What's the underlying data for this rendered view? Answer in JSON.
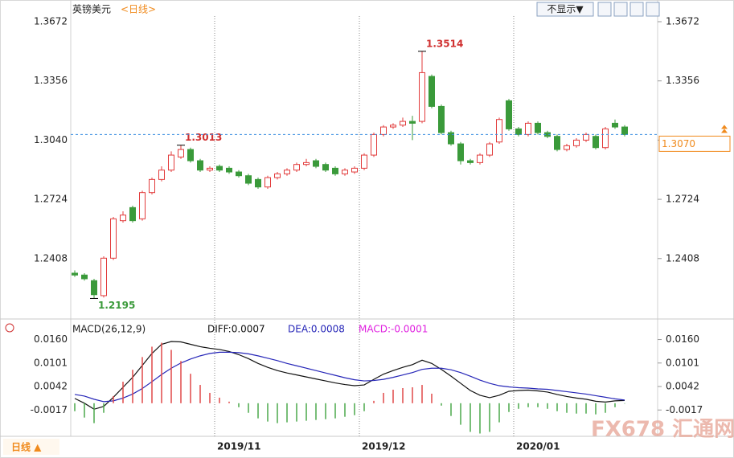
{
  "header": {
    "symbol": "英镑美元",
    "period": "<日线>",
    "display_button": "不显示▼"
  },
  "footer": {
    "period_button": "日线 ▲"
  },
  "watermark": "FX678 汇通网",
  "chart_data": [
    {
      "type": "candlestick",
      "categories": [
        null,
        null,
        null,
        null,
        null,
        null,
        null,
        null,
        null,
        null,
        null,
        null,
        null,
        null,
        null,
        "2019/11",
        null,
        null,
        null,
        null,
        null,
        null,
        null,
        null,
        null,
        null,
        null,
        null,
        null,
        null,
        "2019/12",
        null,
        null,
        null,
        null,
        null,
        null,
        null,
        null,
        null,
        null,
        null,
        null,
        null,
        null,
        null,
        "2020/01",
        null,
        null,
        null,
        null,
        null,
        null,
        null,
        null,
        null,
        null,
        null
      ],
      "open": [
        1.233,
        1.232,
        1.229,
        1.221,
        1.241,
        1.261,
        1.268,
        1.262,
        1.276,
        1.283,
        1.288,
        1.295,
        1.299,
        1.293,
        1.288,
        1.29,
        1.289,
        1.287,
        1.285,
        1.283,
        1.279,
        1.284,
        1.286,
        1.288,
        1.291,
        1.293,
        1.291,
        1.289,
        1.286,
        1.287,
        1.289,
        1.296,
        1.307,
        1.311,
        1.312,
        1.314,
        1.314,
        1.338,
        1.322,
        1.308,
        1.302,
        1.293,
        1.292,
        1.296,
        1.303,
        1.325,
        1.31,
        1.307,
        1.313,
        1.308,
        1.306,
        1.299,
        1.301,
        1.304,
        1.306,
        1.3,
        1.313,
        1.311
      ],
      "high": [
        1.2345,
        1.233,
        1.23,
        1.242,
        1.263,
        1.266,
        1.269,
        1.277,
        1.284,
        1.29,
        1.298,
        1.3013,
        1.3,
        1.294,
        1.29,
        1.291,
        1.29,
        1.288,
        1.286,
        1.284,
        1.285,
        1.287,
        1.289,
        1.292,
        1.294,
        1.294,
        1.292,
        1.29,
        1.289,
        1.29,
        1.297,
        1.308,
        1.312,
        1.313,
        1.316,
        1.317,
        1.3514,
        1.339,
        1.323,
        1.309,
        1.303,
        1.294,
        1.297,
        1.303,
        1.316,
        1.326,
        1.311,
        1.314,
        1.314,
        1.309,
        1.307,
        1.302,
        1.305,
        1.308,
        1.307,
        1.311,
        1.315,
        1.312
      ],
      "low": [
        1.231,
        1.229,
        1.2195,
        1.22,
        1.24,
        1.26,
        1.26,
        1.261,
        1.275,
        1.282,
        1.287,
        1.294,
        1.292,
        1.287,
        1.287,
        1.287,
        1.286,
        1.284,
        1.28,
        1.278,
        1.278,
        1.283,
        1.285,
        1.287,
        1.29,
        1.289,
        1.287,
        1.285,
        1.285,
        1.286,
        1.288,
        1.295,
        1.306,
        1.31,
        1.311,
        1.304,
        1.313,
        1.321,
        1.307,
        1.301,
        1.291,
        1.291,
        1.291,
        1.295,
        1.302,
        1.309,
        1.306,
        1.306,
        1.307,
        1.305,
        1.298,
        1.298,
        1.3,
        1.303,
        1.299,
        1.299,
        1.31,
        1.306
      ],
      "close": [
        1.232,
        1.23,
        1.2215,
        1.241,
        1.262,
        1.264,
        1.261,
        1.276,
        1.283,
        1.288,
        1.296,
        1.299,
        1.293,
        1.288,
        1.289,
        1.288,
        1.287,
        1.285,
        1.281,
        1.279,
        1.284,
        1.286,
        1.288,
        1.291,
        1.292,
        1.29,
        1.288,
        1.286,
        1.288,
        1.289,
        1.296,
        1.307,
        1.311,
        1.312,
        1.314,
        1.313,
        1.34,
        1.322,
        1.308,
        1.302,
        1.293,
        1.292,
        1.296,
        1.302,
        1.315,
        1.31,
        1.307,
        1.313,
        1.308,
        1.306,
        1.299,
        1.301,
        1.304,
        1.307,
        1.3,
        1.31,
        1.311,
        1.307
      ],
      "up_color": "#e23b3b",
      "down_color": "#3a9a3a",
      "last_price": {
        "value": 1.307,
        "label": "1.3070"
      },
      "ylim": [
        1.21,
        1.3672
      ],
      "yticks": [
        {
          "value": 1.3672,
          "label": "1.3672"
        },
        {
          "value": 1.3356,
          "label": "1.3356"
        },
        {
          "value": 1.304,
          "label": "1.3040"
        },
        {
          "value": 1.2724,
          "label": "1.2724"
        },
        {
          "value": 1.2408,
          "label": "1.2408"
        }
      ],
      "grid": false
    },
    {
      "type": "macd",
      "indicator": "MACD(26,12,9)",
      "series": [
        {
          "name": "DIFF:0.0007",
          "color": "#111111",
          "kind": "line",
          "values": [
            0.0012,
            0.0,
            -0.0015,
            -0.0008,
            0.0015,
            0.004,
            0.0065,
            0.0095,
            0.0125,
            0.0148,
            0.0155,
            0.0154,
            0.0148,
            0.0142,
            0.0138,
            0.0135,
            0.013,
            0.0122,
            0.0112,
            0.01,
            0.009,
            0.0082,
            0.0076,
            0.0071,
            0.0066,
            0.0061,
            0.0056,
            0.0051,
            0.0047,
            0.0044,
            0.0046,
            0.006,
            0.0073,
            0.0082,
            0.009,
            0.0097,
            0.0108,
            0.01,
            0.0085,
            0.0068,
            0.005,
            0.0032,
            0.002,
            0.0014,
            0.002,
            0.003,
            0.0032,
            0.0033,
            0.0031,
            0.0028,
            0.0022,
            0.0017,
            0.0013,
            0.001,
            0.0005,
            0.0003,
            0.0006,
            0.0007
          ]
        },
        {
          "name": "DEA:0.0008",
          "color": "#2626b8",
          "kind": "line",
          "values": [
            0.0022,
            0.0018,
            0.001,
            0.0004,
            0.0006,
            0.0013,
            0.0023,
            0.0037,
            0.0054,
            0.0072,
            0.0088,
            0.0101,
            0.0111,
            0.0119,
            0.0125,
            0.0128,
            0.0128,
            0.0127,
            0.0124,
            0.0119,
            0.0113,
            0.0107,
            0.01,
            0.0094,
            0.0088,
            0.0082,
            0.0076,
            0.007,
            0.0064,
            0.0059,
            0.0056,
            0.0057,
            0.006,
            0.0065,
            0.0071,
            0.0077,
            0.0085,
            0.0088,
            0.0088,
            0.0084,
            0.0077,
            0.0068,
            0.0058,
            0.005,
            0.0044,
            0.0041,
            0.0039,
            0.0038,
            0.0036,
            0.0035,
            0.0032,
            0.0029,
            0.0026,
            0.0023,
            0.0019,
            0.0015,
            0.0011,
            0.0008
          ]
        },
        {
          "name": "MACD:-0.0001",
          "color": "#e020e0",
          "kind": "bar",
          "up_color": "#e04848",
          "down_color": "#4aa84a",
          "values": [
            -0.002,
            -0.0036,
            -0.005,
            -0.0024,
            0.0018,
            0.0054,
            0.0084,
            0.0116,
            0.0142,
            0.0152,
            0.0134,
            0.0106,
            0.0074,
            0.0046,
            0.0026,
            0.0014,
            0.0004,
            -0.001,
            -0.0024,
            -0.0038,
            -0.0046,
            -0.005,
            -0.0048,
            -0.0046,
            -0.0044,
            -0.0042,
            -0.004,
            -0.0038,
            -0.0034,
            -0.003,
            -0.002,
            0.0006,
            0.0026,
            0.0034,
            0.0038,
            0.004,
            0.0046,
            0.0024,
            -0.0006,
            -0.0032,
            -0.0054,
            -0.0072,
            -0.0076,
            -0.0072,
            -0.0048,
            -0.0022,
            -0.0014,
            -0.001,
            -0.001,
            -0.0014,
            -0.002,
            -0.0024,
            -0.0026,
            -0.0026,
            -0.0028,
            -0.0024,
            -0.001,
            -0.0001
          ]
        }
      ],
      "ylim": [
        -0.0075,
        0.0195
      ],
      "yticks": [
        {
          "value": 0.016,
          "label": "0.0160"
        },
        0.0101,
        0.0042,
        -0.0017
      ]
    }
  ]
}
